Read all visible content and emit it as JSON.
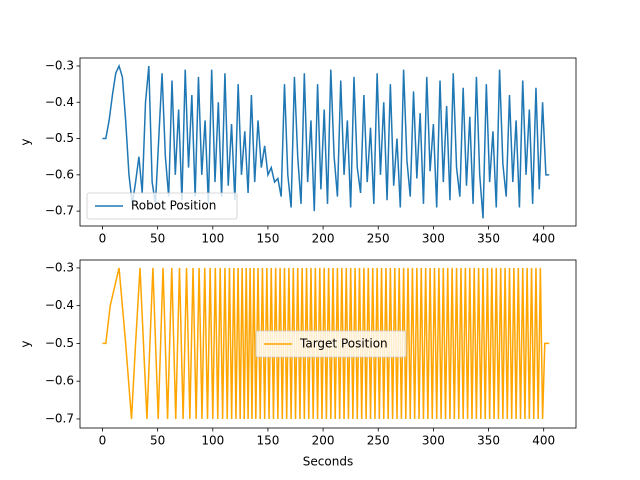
{
  "chart_data": [
    {
      "type": "line",
      "ylabel": "y",
      "x": [
        0,
        3,
        6,
        9,
        12,
        15,
        18,
        21,
        24,
        27,
        30,
        33,
        36,
        39,
        42,
        45,
        48,
        51,
        54,
        57,
        60,
        63,
        66,
        69,
        72,
        75,
        78,
        81,
        84,
        87,
        90,
        93,
        96,
        99,
        102,
        105,
        108,
        111,
        114,
        117,
        120,
        123,
        126,
        129,
        132,
        135,
        138,
        141,
        144,
        147,
        150,
        153,
        156,
        159,
        162,
        165,
        168,
        171,
        174,
        177,
        180,
        183,
        186,
        189,
        192,
        195,
        198,
        201,
        204,
        207,
        210,
        213,
        216,
        219,
        222,
        225,
        228,
        231,
        234,
        237,
        240,
        243,
        246,
        249,
        252,
        255,
        258,
        261,
        264,
        267,
        270,
        273,
        276,
        279,
        282,
        285,
        288,
        291,
        294,
        297,
        300,
        303,
        306,
        309,
        312,
        315,
        318,
        321,
        324,
        327,
        330,
        333,
        336,
        339,
        342,
        345,
        348,
        351,
        354,
        357,
        360,
        363,
        366,
        369,
        372,
        375,
        378,
        381,
        384,
        387,
        390,
        393,
        396,
        399,
        402,
        405
      ],
      "series": [
        {
          "name": "Robot Position",
          "color": "#1f77b4",
          "values": [
            -0.5,
            -0.5,
            -0.45,
            -0.38,
            -0.32,
            -0.3,
            -0.33,
            -0.45,
            -0.6,
            -0.68,
            -0.62,
            -0.55,
            -0.65,
            -0.4,
            -0.3,
            -0.62,
            -0.68,
            -0.5,
            -0.32,
            -0.55,
            -0.66,
            -0.34,
            -0.6,
            -0.42,
            -0.67,
            -0.31,
            -0.58,
            -0.38,
            -0.66,
            -0.33,
            -0.6,
            -0.45,
            -0.68,
            -0.31,
            -0.62,
            -0.4,
            -0.66,
            -0.32,
            -0.63,
            -0.46,
            -0.67,
            -0.35,
            -0.6,
            -0.48,
            -0.65,
            -0.38,
            -0.62,
            -0.45,
            -0.58,
            -0.52,
            -0.6,
            -0.58,
            -0.62,
            -0.61,
            -0.66,
            -0.35,
            -0.6,
            -0.69,
            -0.33,
            -0.55,
            -0.68,
            -0.32,
            -0.62,
            -0.45,
            -0.7,
            -0.35,
            -0.64,
            -0.42,
            -0.68,
            -0.31,
            -0.55,
            -0.66,
            -0.34,
            -0.6,
            -0.45,
            -0.69,
            -0.33,
            -0.58,
            -0.65,
            -0.38,
            -0.62,
            -0.47,
            -0.68,
            -0.32,
            -0.6,
            -0.4,
            -0.67,
            -0.35,
            -0.63,
            -0.5,
            -0.69,
            -0.31,
            -0.56,
            -0.66,
            -0.37,
            -0.61,
            -0.43,
            -0.68,
            -0.33,
            -0.59,
            -0.46,
            -0.69,
            -0.34,
            -0.62,
            -0.41,
            -0.67,
            -0.32,
            -0.58,
            -0.66,
            -0.36,
            -0.63,
            -0.44,
            -0.68,
            -0.33,
            -0.6,
            -0.72,
            -0.35,
            -0.62,
            -0.48,
            -0.69,
            -0.31,
            -0.57,
            -0.66,
            -0.38,
            -0.62,
            -0.45,
            -0.69,
            -0.34,
            -0.6,
            -0.42,
            -0.68,
            -0.36,
            -0.64,
            -0.4,
            -0.6,
            -0.6
          ]
        }
      ],
      "xlim": [
        -20.4,
        429.3
      ],
      "ylim": [
        -0.741,
        -0.278
      ],
      "xticks": [
        0,
        50,
        100,
        150,
        200,
        250,
        300,
        350,
        400
      ],
      "yticks": [
        {
          "value": -0.7,
          "label": "−0.7"
        },
        {
          "value": -0.6,
          "label": "−0.6"
        },
        {
          "value": -0.5,
          "label": "−0.5"
        },
        {
          "value": -0.4,
          "label": "−0.4"
        },
        {
          "value": -0.3,
          "label": "−0.3"
        }
      ],
      "legend": "lower left"
    },
    {
      "type": "line",
      "ylabel": "y",
      "xlabel": "Seconds",
      "x": [
        0,
        3,
        7,
        15,
        21,
        26.3,
        30,
        34,
        40.3,
        45.7,
        50.5,
        54.9,
        59.0,
        62.8,
        66.4,
        69.8,
        73.1,
        76.2,
        79.2,
        82.1,
        84.9,
        87.6,
        90.2,
        92.7,
        95.2,
        97.6,
        100.0,
        102.3,
        104.5,
        106.7,
        108.9,
        111.0,
        113.1,
        115.1,
        117.1,
        119.1,
        121.0,
        122.9,
        124.8,
        126.6,
        128.5,
        130.3,
        132.0,
        133.8,
        135.5,
        137.2,
        139,
        141,
        143,
        145,
        147,
        149,
        151,
        153,
        155,
        157,
        159,
        161,
        163,
        165,
        167,
        169,
        171,
        173,
        175,
        177,
        179,
        181,
        183,
        185,
        187,
        189,
        191,
        193,
        195,
        197,
        199,
        201,
        203,
        205,
        207,
        209,
        211,
        213,
        215,
        217,
        219,
        221,
        223,
        225,
        227,
        229,
        231,
        233,
        235,
        237,
        239,
        241,
        243,
        245,
        247,
        249,
        251,
        253,
        255,
        257,
        259,
        261,
        263,
        265,
        267,
        269,
        271,
        273,
        275,
        277,
        279,
        281,
        283,
        285,
        287,
        289,
        291,
        293,
        295,
        297,
        299,
        301,
        303,
        305,
        307,
        309,
        311,
        313,
        315,
        317,
        319,
        321,
        323,
        325,
        327,
        329,
        331,
        333,
        335,
        337,
        339,
        341,
        343,
        345,
        347,
        349,
        351,
        353,
        355,
        357,
        359,
        361,
        363,
        365,
        367,
        369,
        371,
        373,
        375,
        377,
        379,
        381,
        383,
        385,
        387,
        389,
        391,
        393,
        395,
        397,
        399,
        401,
        405
      ],
      "series": [
        {
          "name": "Target Position",
          "color": "#ffa500",
          "values": [
            -0.5,
            -0.5,
            -0.4,
            -0.3,
            -0.5,
            -0.7,
            -0.5,
            -0.3,
            -0.7,
            -0.3,
            -0.7,
            -0.3,
            -0.7,
            -0.3,
            -0.7,
            -0.3,
            -0.7,
            -0.3,
            -0.7,
            -0.3,
            -0.7,
            -0.3,
            -0.7,
            -0.3,
            -0.7,
            -0.3,
            -0.7,
            -0.3,
            -0.7,
            -0.3,
            -0.7,
            -0.3,
            -0.7,
            -0.3,
            -0.7,
            -0.3,
            -0.7,
            -0.3,
            -0.7,
            -0.3,
            -0.7,
            -0.3,
            -0.7,
            -0.3,
            -0.7,
            -0.3,
            -0.7,
            -0.3,
            -0.7,
            -0.3,
            -0.7,
            -0.3,
            -0.7,
            -0.3,
            -0.7,
            -0.3,
            -0.7,
            -0.3,
            -0.7,
            -0.3,
            -0.7,
            -0.3,
            -0.7,
            -0.3,
            -0.7,
            -0.3,
            -0.7,
            -0.3,
            -0.7,
            -0.3,
            -0.7,
            -0.3,
            -0.7,
            -0.3,
            -0.7,
            -0.3,
            -0.7,
            -0.3,
            -0.7,
            -0.3,
            -0.7,
            -0.3,
            -0.7,
            -0.3,
            -0.7,
            -0.3,
            -0.7,
            -0.3,
            -0.7,
            -0.3,
            -0.7,
            -0.3,
            -0.7,
            -0.3,
            -0.7,
            -0.3,
            -0.7,
            -0.3,
            -0.7,
            -0.3,
            -0.7,
            -0.3,
            -0.7,
            -0.3,
            -0.7,
            -0.3,
            -0.7,
            -0.3,
            -0.7,
            -0.3,
            -0.7,
            -0.3,
            -0.7,
            -0.3,
            -0.7,
            -0.3,
            -0.7,
            -0.3,
            -0.7,
            -0.3,
            -0.7,
            -0.3,
            -0.7,
            -0.3,
            -0.7,
            -0.3,
            -0.7,
            -0.3,
            -0.7,
            -0.3,
            -0.7,
            -0.3,
            -0.7,
            -0.3,
            -0.7,
            -0.3,
            -0.7,
            -0.3,
            -0.7,
            -0.3,
            -0.7,
            -0.3,
            -0.7,
            -0.3,
            -0.7,
            -0.3,
            -0.7,
            -0.3,
            -0.7,
            -0.3,
            -0.7,
            -0.3,
            -0.7,
            -0.3,
            -0.7,
            -0.3,
            -0.7,
            -0.3,
            -0.7,
            -0.3,
            -0.7,
            -0.3,
            -0.7,
            -0.3,
            -0.7,
            -0.3,
            -0.7,
            -0.3,
            -0.7,
            -0.3,
            -0.7,
            -0.3,
            -0.7,
            -0.3,
            -0.7,
            -0.3,
            -0.7,
            -0.5,
            -0.5
          ]
        }
      ],
      "xlim": [
        -20.4,
        429.3
      ],
      "ylim": [
        -0.724,
        -0.279
      ],
      "xticks": [
        0,
        50,
        100,
        150,
        200,
        250,
        300,
        350,
        400
      ],
      "yticks": [
        {
          "value": -0.7,
          "label": "−0.7"
        },
        {
          "value": -0.6,
          "label": "−0.6"
        },
        {
          "value": -0.5,
          "label": "−0.5"
        },
        {
          "value": -0.4,
          "label": "−0.4"
        },
        {
          "value": -0.3,
          "label": "−0.3"
        }
      ],
      "legend": "center"
    }
  ]
}
